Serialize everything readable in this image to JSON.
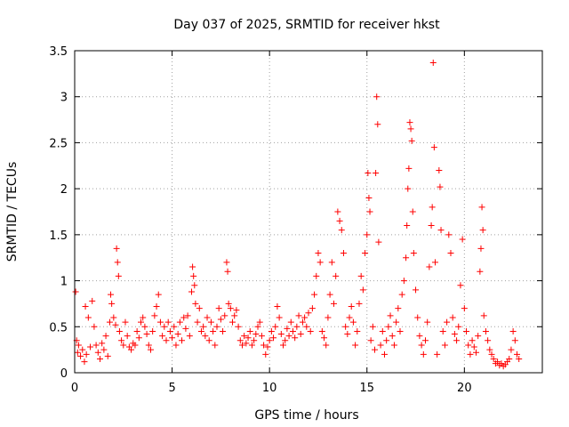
{
  "chart_data": {
    "type": "scatter",
    "title": "Day 037 of 2025, SRMTID for receiver hkst",
    "xlabel": "GPS time / hours",
    "ylabel": "SRMTID / TECUs",
    "xlim": [
      0,
      24
    ],
    "ylim": [
      0,
      3.5
    ],
    "x_ticks": [
      0,
      5,
      10,
      15,
      20
    ],
    "x_tick_labels": [
      "0",
      "5",
      "10",
      "15",
      "20"
    ],
    "y_ticks": [
      0,
      0.5,
      1,
      1.5,
      2,
      2.5,
      3,
      3.5
    ],
    "y_tick_labels": [
      "0",
      "0.5",
      "1",
      "1.5",
      "2",
      "2.5",
      "3",
      "3.5"
    ],
    "grid": true,
    "marker": "+",
    "marker_color": "#ff0000",
    "series": [
      {
        "name": "SRMTID",
        "points": [
          [
            0.05,
            0.88
          ],
          [
            0.1,
            0.35
          ],
          [
            0.15,
            0.22
          ],
          [
            0.2,
            0.3
          ],
          [
            0.3,
            0.18
          ],
          [
            0.4,
            0.25
          ],
          [
            0.5,
            0.12
          ],
          [
            0.55,
            0.72
          ],
          [
            0.6,
            0.2
          ],
          [
            0.7,
            0.6
          ],
          [
            0.8,
            0.28
          ],
          [
            0.9,
            0.78
          ],
          [
            1.0,
            0.5
          ],
          [
            1.1,
            0.3
          ],
          [
            1.2,
            0.22
          ],
          [
            1.3,
            0.15
          ],
          [
            1.4,
            0.32
          ],
          [
            1.5,
            0.25
          ],
          [
            1.6,
            0.4
          ],
          [
            1.7,
            0.18
          ],
          [
            1.8,
            0.55
          ],
          [
            1.85,
            0.85
          ],
          [
            1.9,
            0.75
          ],
          [
            2.0,
            0.6
          ],
          [
            2.1,
            0.52
          ],
          [
            2.15,
            1.35
          ],
          [
            2.2,
            1.2
          ],
          [
            2.25,
            1.05
          ],
          [
            2.3,
            0.45
          ],
          [
            2.4,
            0.35
          ],
          [
            2.5,
            0.3
          ],
          [
            2.6,
            0.55
          ],
          [
            2.7,
            0.4
          ],
          [
            2.8,
            0.28
          ],
          [
            2.9,
            0.25
          ],
          [
            3.0,
            0.32
          ],
          [
            3.1,
            0.3
          ],
          [
            3.2,
            0.45
          ],
          [
            3.3,
            0.38
          ],
          [
            3.4,
            0.55
          ],
          [
            3.5,
            0.6
          ],
          [
            3.6,
            0.5
          ],
          [
            3.7,
            0.42
          ],
          [
            3.8,
            0.3
          ],
          [
            3.9,
            0.25
          ],
          [
            4.0,
            0.45
          ],
          [
            4.1,
            0.62
          ],
          [
            4.2,
            0.72
          ],
          [
            4.3,
            0.85
          ],
          [
            4.4,
            0.55
          ],
          [
            4.5,
            0.4
          ],
          [
            4.6,
            0.5
          ],
          [
            4.7,
            0.35
          ],
          [
            4.8,
            0.55
          ],
          [
            4.9,
            0.45
          ],
          [
            5.0,
            0.38
          ],
          [
            5.1,
            0.5
          ],
          [
            5.2,
            0.3
          ],
          [
            5.3,
            0.42
          ],
          [
            5.4,
            0.55
          ],
          [
            5.5,
            0.35
          ],
          [
            5.6,
            0.6
          ],
          [
            5.7,
            0.48
          ],
          [
            5.8,
            0.62
          ],
          [
            5.9,
            0.4
          ],
          [
            6.0,
            0.88
          ],
          [
            6.05,
            1.15
          ],
          [
            6.1,
            1.05
          ],
          [
            6.15,
            0.95
          ],
          [
            6.2,
            0.75
          ],
          [
            6.3,
            0.55
          ],
          [
            6.4,
            0.7
          ],
          [
            6.5,
            0.45
          ],
          [
            6.6,
            0.5
          ],
          [
            6.7,
            0.4
          ],
          [
            6.8,
            0.6
          ],
          [
            6.9,
            0.35
          ],
          [
            7.0,
            0.55
          ],
          [
            7.1,
            0.45
          ],
          [
            7.2,
            0.3
          ],
          [
            7.3,
            0.5
          ],
          [
            7.4,
            0.7
          ],
          [
            7.5,
            0.58
          ],
          [
            7.6,
            0.45
          ],
          [
            7.7,
            0.62
          ],
          [
            7.8,
            1.2
          ],
          [
            7.85,
            1.1
          ],
          [
            7.9,
            0.75
          ],
          [
            8.0,
            0.7
          ],
          [
            8.1,
            0.55
          ],
          [
            8.2,
            0.62
          ],
          [
            8.3,
            0.68
          ],
          [
            8.4,
            0.5
          ],
          [
            8.5,
            0.35
          ],
          [
            8.6,
            0.3
          ],
          [
            8.7,
            0.4
          ],
          [
            8.8,
            0.32
          ],
          [
            8.9,
            0.38
          ],
          [
            9.0,
            0.45
          ],
          [
            9.1,
            0.3
          ],
          [
            9.2,
            0.35
          ],
          [
            9.3,
            0.42
          ],
          [
            9.4,
            0.5
          ],
          [
            9.5,
            0.55
          ],
          [
            9.6,
            0.4
          ],
          [
            9.7,
            0.3
          ],
          [
            9.8,
            0.2
          ],
          [
            9.9,
            0.28
          ],
          [
            10.0,
            0.35
          ],
          [
            10.1,
            0.45
          ],
          [
            10.2,
            0.38
          ],
          [
            10.3,
            0.5
          ],
          [
            10.4,
            0.72
          ],
          [
            10.5,
            0.6
          ],
          [
            10.6,
            0.42
          ],
          [
            10.7,
            0.3
          ],
          [
            10.8,
            0.35
          ],
          [
            10.9,
            0.48
          ],
          [
            11.0,
            0.4
          ],
          [
            11.1,
            0.55
          ],
          [
            11.2,
            0.45
          ],
          [
            11.3,
            0.38
          ],
          [
            11.4,
            0.5
          ],
          [
            11.5,
            0.62
          ],
          [
            11.6,
            0.42
          ],
          [
            11.7,
            0.55
          ],
          [
            11.8,
            0.6
          ],
          [
            11.9,
            0.5
          ],
          [
            12.0,
            0.65
          ],
          [
            12.1,
            0.45
          ],
          [
            12.2,
            0.7
          ],
          [
            12.3,
            0.85
          ],
          [
            12.4,
            1.05
          ],
          [
            12.5,
            1.3
          ],
          [
            12.6,
            1.2
          ],
          [
            12.7,
            0.45
          ],
          [
            12.8,
            0.38
          ],
          [
            12.9,
            0.3
          ],
          [
            13.0,
            0.6
          ],
          [
            13.1,
            0.85
          ],
          [
            13.2,
            1.2
          ],
          [
            13.3,
            0.75
          ],
          [
            13.4,
            1.05
          ],
          [
            13.5,
            1.75
          ],
          [
            13.6,
            1.65
          ],
          [
            13.7,
            1.55
          ],
          [
            13.8,
            1.3
          ],
          [
            13.9,
            0.5
          ],
          [
            14.0,
            0.42
          ],
          [
            14.1,
            0.6
          ],
          [
            14.2,
            0.72
          ],
          [
            14.3,
            0.55
          ],
          [
            14.4,
            0.3
          ],
          [
            14.5,
            0.45
          ],
          [
            14.6,
            0.75
          ],
          [
            14.7,
            1.05
          ],
          [
            14.8,
            0.9
          ],
          [
            14.9,
            1.3
          ],
          [
            15.0,
            1.5
          ],
          [
            15.05,
            2.17
          ],
          [
            15.1,
            1.9
          ],
          [
            15.15,
            1.75
          ],
          [
            15.2,
            0.35
          ],
          [
            15.3,
            0.5
          ],
          [
            15.4,
            0.25
          ],
          [
            15.45,
            2.17
          ],
          [
            15.5,
            3.0
          ],
          [
            15.55,
            2.7
          ],
          [
            15.6,
            1.42
          ],
          [
            15.7,
            0.3
          ],
          [
            15.8,
            0.45
          ],
          [
            15.9,
            0.2
          ],
          [
            16.0,
            0.35
          ],
          [
            16.1,
            0.5
          ],
          [
            16.2,
            0.62
          ],
          [
            16.3,
            0.4
          ],
          [
            16.4,
            0.3
          ],
          [
            16.5,
            0.55
          ],
          [
            16.6,
            0.7
          ],
          [
            16.7,
            0.45
          ],
          [
            16.8,
            0.85
          ],
          [
            16.9,
            1.0
          ],
          [
            17.0,
            1.25
          ],
          [
            17.05,
            1.6
          ],
          [
            17.1,
            2.0
          ],
          [
            17.15,
            2.22
          ],
          [
            17.2,
            2.72
          ],
          [
            17.25,
            2.65
          ],
          [
            17.3,
            2.52
          ],
          [
            17.35,
            1.75
          ],
          [
            17.4,
            1.3
          ],
          [
            17.5,
            0.9
          ],
          [
            17.6,
            0.6
          ],
          [
            17.7,
            0.4
          ],
          [
            17.8,
            0.3
          ],
          [
            17.9,
            0.2
          ],
          [
            18.0,
            0.35
          ],
          [
            18.1,
            0.55
          ],
          [
            18.2,
            1.15
          ],
          [
            18.3,
            1.6
          ],
          [
            18.35,
            1.8
          ],
          [
            18.4,
            3.37
          ],
          [
            18.45,
            2.45
          ],
          [
            18.5,
            1.2
          ],
          [
            18.6,
            0.2
          ],
          [
            18.7,
            2.2
          ],
          [
            18.75,
            2.02
          ],
          [
            18.8,
            1.55
          ],
          [
            18.9,
            0.45
          ],
          [
            19.0,
            0.3
          ],
          [
            19.1,
            0.55
          ],
          [
            19.2,
            1.5
          ],
          [
            19.3,
            1.3
          ],
          [
            19.4,
            0.6
          ],
          [
            19.5,
            0.42
          ],
          [
            19.6,
            0.35
          ],
          [
            19.7,
            0.5
          ],
          [
            19.8,
            0.95
          ],
          [
            19.9,
            1.45
          ],
          [
            20.0,
            0.7
          ],
          [
            20.1,
            0.45
          ],
          [
            20.2,
            0.3
          ],
          [
            20.3,
            0.2
          ],
          [
            20.4,
            0.35
          ],
          [
            20.5,
            0.28
          ],
          [
            20.6,
            0.22
          ],
          [
            20.7,
            0.4
          ],
          [
            20.8,
            1.1
          ],
          [
            20.85,
            1.35
          ],
          [
            20.9,
            1.8
          ],
          [
            20.95,
            1.55
          ],
          [
            21.0,
            0.62
          ],
          [
            21.1,
            0.45
          ],
          [
            21.2,
            0.35
          ],
          [
            21.3,
            0.25
          ],
          [
            21.4,
            0.2
          ],
          [
            21.5,
            0.15
          ],
          [
            21.6,
            0.1
          ],
          [
            21.7,
            0.12
          ],
          [
            21.8,
            0.08
          ],
          [
            21.9,
            0.1
          ],
          [
            22.0,
            0.07
          ],
          [
            22.1,
            0.09
          ],
          [
            22.2,
            0.12
          ],
          [
            22.3,
            0.15
          ],
          [
            22.4,
            0.25
          ],
          [
            22.5,
            0.45
          ],
          [
            22.6,
            0.35
          ],
          [
            22.7,
            0.2
          ],
          [
            22.8,
            0.15
          ]
        ]
      }
    ]
  }
}
